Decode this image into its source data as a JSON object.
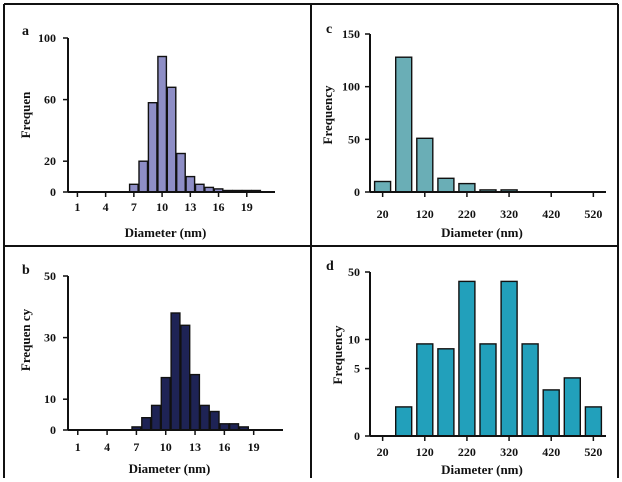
{
  "chart_data": [
    {
      "id": "a",
      "panel_label": "a",
      "type": "bar",
      "xlabel": "Diameter (nm)",
      "ylabel": "Frequen",
      "bar_color": "#8e8ec6",
      "ylim": [
        0,
        100
      ],
      "xlim": [
        0,
        22
      ],
      "x_ticks": [
        1,
        4,
        7,
        10,
        13,
        16,
        19
      ],
      "y_ticks": [
        0,
        20,
        60,
        100
      ],
      "bar_width": 0.9,
      "x": [
        7,
        8,
        9,
        10,
        11,
        12,
        13,
        14,
        15,
        16,
        17,
        18,
        19,
        20
      ],
      "values": [
        5,
        20,
        58,
        88,
        68,
        25,
        10,
        5,
        3,
        2,
        1,
        1,
        1,
        1
      ]
    },
    {
      "id": "b",
      "panel_label": "b",
      "type": "bar",
      "xlabel": "Diameter (nm)",
      "ylabel": "Frequen cy",
      "bar_color": "#1e2355",
      "ylim": [
        0,
        50
      ],
      "xlim": [
        0,
        22
      ],
      "x_ticks": [
        1,
        4,
        7,
        10,
        13,
        16,
        19
      ],
      "y_ticks": [
        0,
        10,
        30,
        50
      ],
      "bar_width": 0.9,
      "x": [
        7,
        8,
        9,
        10,
        11,
        12,
        13,
        14,
        15,
        16,
        17,
        18
      ],
      "values": [
        1,
        4,
        8,
        17,
        38,
        34,
        18,
        8,
        6,
        2,
        2,
        1
      ]
    },
    {
      "id": "c",
      "panel_label": "c",
      "type": "bar",
      "xlabel": "Diameter (nm)",
      "ylabel": "Frequency",
      "bar_color": "#6aaeb6",
      "ylim": [
        0,
        150
      ],
      "xlim": [
        -10,
        550
      ],
      "x_ticks": [
        20,
        120,
        220,
        320,
        420,
        520
      ],
      "y_ticks": [
        0,
        50,
        100,
        150
      ],
      "bar_width": 38,
      "x": [
        20,
        70,
        120,
        170,
        220,
        270,
        320
      ],
      "values": [
        10,
        128,
        51,
        13,
        8,
        2,
        2
      ]
    },
    {
      "id": "d",
      "panel_label": "d",
      "type": "bar",
      "xlabel": "Diameter (nm)",
      "ylabel": "Frequency",
      "bar_color": "#22a0bb",
      "ylim": [
        0,
        50
      ],
      "xlim": [
        -10,
        550
      ],
      "x_ticks": [
        20,
        120,
        220,
        320,
        420,
        520
      ],
      "y_ticks": [
        0,
        5,
        10,
        50
      ],
      "y_scale": "log",
      "bar_width": 38,
      "x": [
        70,
        120,
        170,
        220,
        270,
        320,
        370,
        420,
        470,
        520
      ],
      "values": [
        2,
        9,
        8,
        40,
        9,
        40,
        9,
        3,
        4,
        2
      ]
    }
  ]
}
